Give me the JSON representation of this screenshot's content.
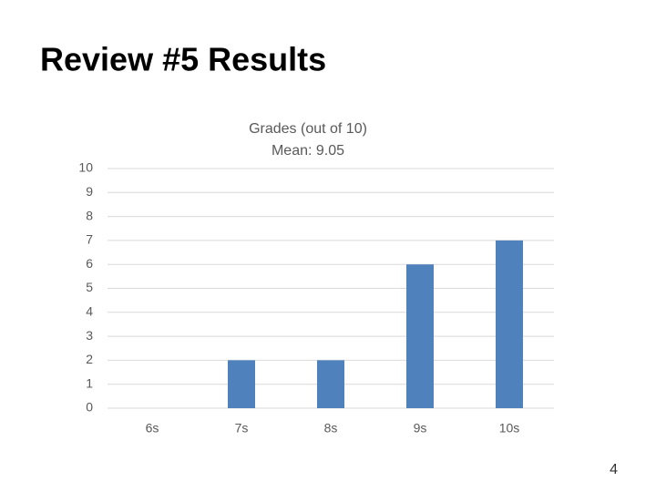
{
  "slide": {
    "title": "Review #5 Results",
    "page_number": "4"
  },
  "chart_data": {
    "type": "bar",
    "title": "Grades (out of 10)",
    "subtitle": "Mean: 9.05",
    "categories": [
      "6s",
      "7s",
      "8s",
      "9s",
      "10s"
    ],
    "values": [
      0,
      2,
      2,
      6,
      7
    ],
    "color": "#4f81bd",
    "ylim": [
      0,
      10
    ],
    "yticks": [
      0,
      1,
      2,
      3,
      4,
      5,
      6,
      7,
      8,
      9,
      10
    ],
    "grid": true
  }
}
